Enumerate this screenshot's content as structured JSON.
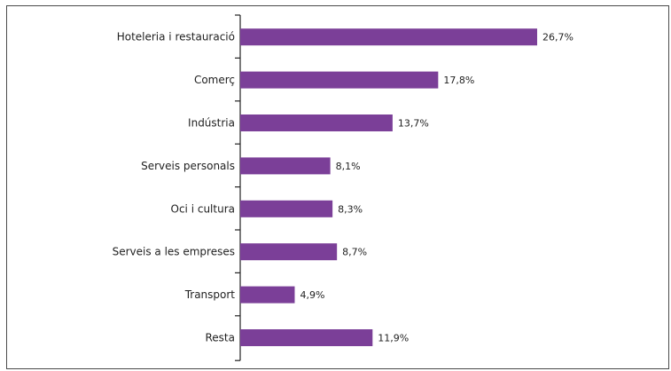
{
  "chart_data": {
    "type": "bar",
    "orientation": "horizontal",
    "categories": [
      "Hoteleria i restauració",
      "Comerç",
      "Indústria",
      "Serveis personals",
      "Oci i cultura",
      "Serveis a les empreses",
      "Transport",
      "Resta"
    ],
    "values": [
      26.7,
      17.8,
      13.7,
      8.1,
      8.3,
      8.7,
      4.9,
      11.9
    ],
    "value_labels": [
      "26,7%",
      "17,8%",
      "13,7%",
      "8,1%",
      "8,3%",
      "8,7%",
      "4,9%",
      "11,9%"
    ],
    "unit": "%",
    "xlim": [
      0,
      30
    ],
    "grid": false,
    "bar_color": "#7b3f98"
  }
}
